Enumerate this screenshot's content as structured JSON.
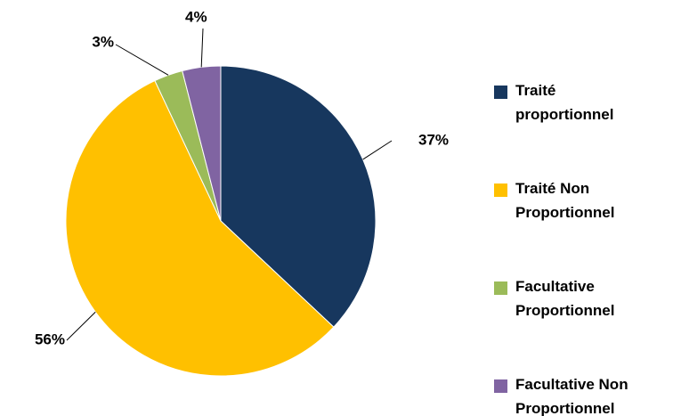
{
  "chart_data": {
    "type": "pie",
    "categories": [
      "Traité proportionnel",
      "Traité Non Proportionnel",
      "Facultative Proportionnel",
      "Facultative Non Proportionnel"
    ],
    "values": [
      37,
      56,
      3,
      4
    ],
    "value_labels": [
      "37%",
      "56%",
      "3%",
      "4%"
    ],
    "colors": [
      "#17375e",
      "#ffc000",
      "#9bbb59",
      "#8064a2"
    ],
    "legend": "right"
  }
}
